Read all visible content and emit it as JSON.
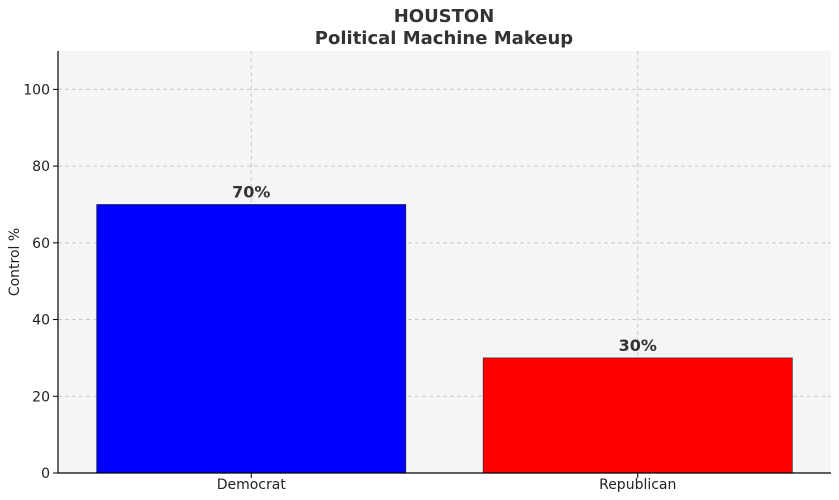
{
  "chart_data": {
    "type": "bar",
    "title": "HOUSTON",
    "subtitle": "Political Machine Makeup",
    "xlabel": "",
    "ylabel": "Control %",
    "categories": [
      "Democrat",
      "Republican"
    ],
    "values": [
      70,
      30
    ],
    "data_labels": [
      "70%",
      "30%"
    ],
    "colors": [
      "#0000ff",
      "#ff0000"
    ],
    "ylim": [
      0,
      110
    ],
    "yticks": [
      0,
      20,
      40,
      60,
      80,
      100
    ],
    "grid": true,
    "plot_background": "#f5f5f5"
  }
}
